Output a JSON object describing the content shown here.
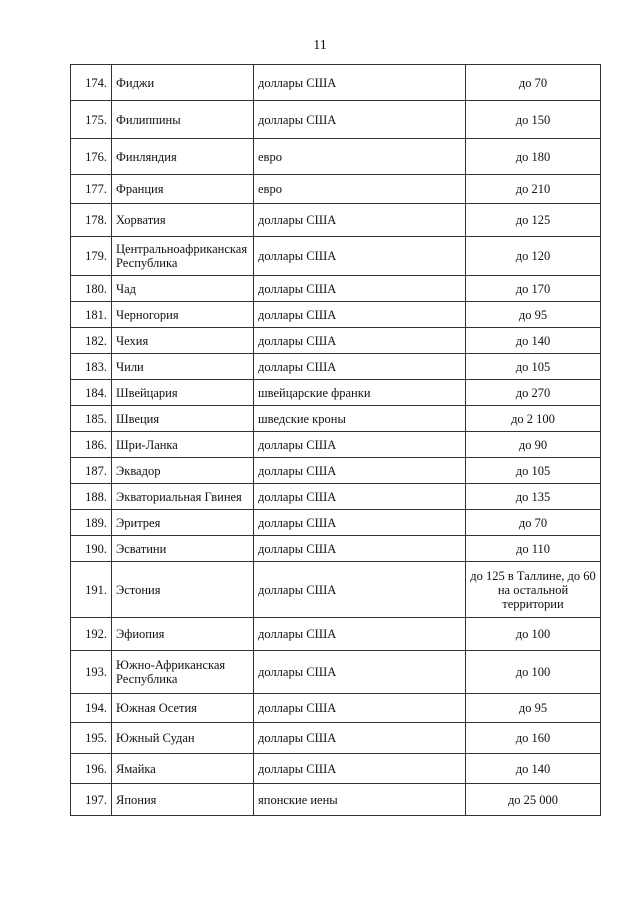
{
  "page_number": "11",
  "rows": [
    {
      "num": "174.",
      "country": "Фиджи",
      "currency": "доллары США",
      "amount": "до 70"
    },
    {
      "num": "175.",
      "country": "Филиппины",
      "currency": "доллары США",
      "amount": "до 150"
    },
    {
      "num": "176.",
      "country": "Финляндия",
      "currency": "евро",
      "amount": "до 180"
    },
    {
      "num": "177.",
      "country": "Франция",
      "currency": "евро",
      "amount": "до 210"
    },
    {
      "num": "178.",
      "country": "Хорватия",
      "currency": "доллары США",
      "amount": "до 125"
    },
    {
      "num": "179.",
      "country": "Центральноафриканская Республика",
      "currency": "доллары США",
      "amount": "до 120"
    },
    {
      "num": "180.",
      "country": "Чад",
      "currency": "доллары США",
      "amount": "до 170"
    },
    {
      "num": "181.",
      "country": "Черногория",
      "currency": "доллары США",
      "amount": "до 95"
    },
    {
      "num": "182.",
      "country": "Чехия",
      "currency": "доллары США",
      "amount": "до 140"
    },
    {
      "num": "183.",
      "country": "Чили",
      "currency": "доллары США",
      "amount": "до 105"
    },
    {
      "num": "184.",
      "country": "Швейцария",
      "currency": "швейцарские франки",
      "amount": "до 270"
    },
    {
      "num": "185.",
      "country": "Швеция",
      "currency": "шведские кроны",
      "amount": "до 2 100"
    },
    {
      "num": "186.",
      "country": "Шри-Ланка",
      "currency": "доллары США",
      "amount": "до 90"
    },
    {
      "num": "187.",
      "country": "Эквадор",
      "currency": "доллары США",
      "amount": "до 105"
    },
    {
      "num": "188.",
      "country": "Экваториальная Гвинея",
      "currency": "доллары США",
      "amount": "до 135"
    },
    {
      "num": "189.",
      "country": "Эритрея",
      "currency": "доллары США",
      "amount": "до 70"
    },
    {
      "num": "190.",
      "country": "Эсватини",
      "currency": "доллары США",
      "amount": "до 110"
    },
    {
      "num": "191.",
      "country": "Эстония",
      "currency": "доллары США",
      "amount": "до 125 в Таллине, до 60 на остальной территории"
    },
    {
      "num": "192.",
      "country": "Эфиопия",
      "currency": "доллары США",
      "amount": "до 100"
    },
    {
      "num": "193.",
      "country": "Южно-Африканская Республика",
      "currency": "доллары США",
      "amount": "до 100"
    },
    {
      "num": "194.",
      "country": "Южная Осетия",
      "currency": "доллары США",
      "amount": "до 95"
    },
    {
      "num": "195.",
      "country": "Южный Судан",
      "currency": "доллары США",
      "amount": "до 160"
    },
    {
      "num": "196.",
      "country": "Ямайка",
      "currency": "доллары США",
      "amount": "до 140"
    },
    {
      "num": "197.",
      "country": "Япония",
      "currency": "японские иены",
      "amount": "до 25 000"
    }
  ]
}
